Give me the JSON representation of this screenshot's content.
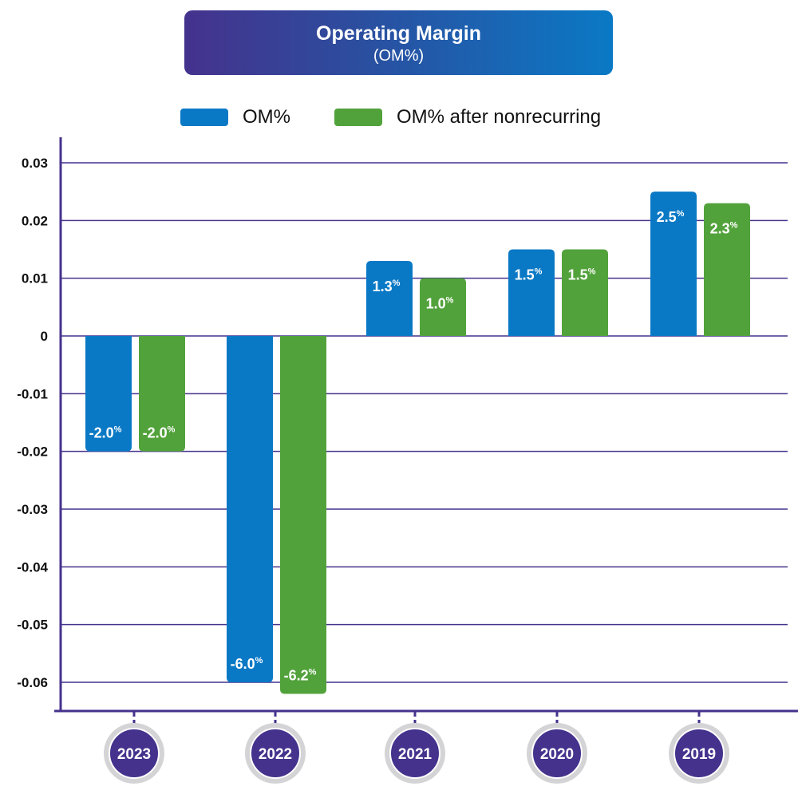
{
  "chart_data": {
    "type": "bar",
    "title": "Operating Margin",
    "subtitle": "(OM%)",
    "categories": [
      "2023",
      "2022",
      "2021",
      "2020",
      "2019"
    ],
    "series": [
      {
        "name": "OM%",
        "color": "#0a79c5",
        "values": [
          -0.02,
          -0.06,
          0.013,
          0.015,
          0.025
        ],
        "labels": [
          "-2.0",
          "-6.0",
          "1.3",
          "1.5",
          "2.5"
        ]
      },
      {
        "name": "OM% after nonrecurring",
        "color": "#52a23b",
        "values": [
          -0.02,
          -0.062,
          0.01,
          0.015,
          0.023
        ],
        "labels": [
          "-2.0",
          "-6.2",
          "1.0",
          "1.5",
          "2.3"
        ]
      }
    ],
    "label_suffix": "%",
    "yticks": [
      "0.03",
      "0.02",
      "0.01",
      "0",
      "-0.01",
      "-0.02",
      "-0.03",
      "-0.04",
      "-0.05",
      "-0.06"
    ],
    "ylim": [
      -0.065,
      0.035
    ],
    "grid": true,
    "legend": "top",
    "axis_color": "#45328d"
  }
}
